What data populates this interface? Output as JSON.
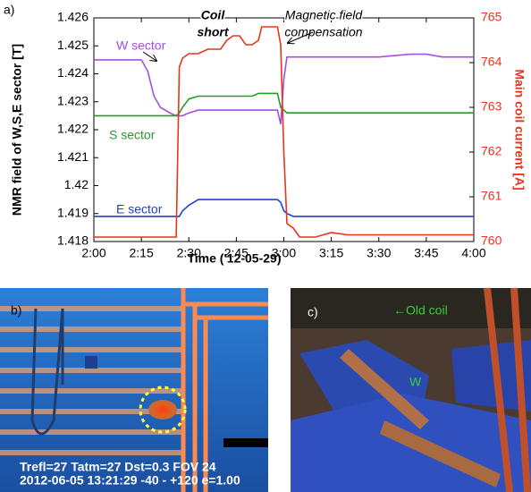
{
  "chart_data": {
    "type": "line",
    "panel_label": "a)",
    "xlabel": "Time ('12-05-29)",
    "ylabel": "NMR field of W,S,E sector [T]",
    "y2label": "Main coil current [A]",
    "x": [
      "2:00",
      "2:10",
      "2:15",
      "2:17",
      "2:19",
      "2:21",
      "2:24",
      "2:26",
      "2:27",
      "2:28",
      "2:30",
      "2:33",
      "2:36",
      "2:40",
      "2:42",
      "2:44",
      "2:46",
      "2:48",
      "2:50",
      "2:52",
      "2:53",
      "2:56",
      "2:58",
      "2:59",
      "3:00",
      "3:01",
      "3:03",
      "3:05",
      "3:10",
      "3:15",
      "3:20",
      "3:30",
      "3:40",
      "3:45",
      "3:50",
      "4:00"
    ],
    "xlim": [
      "2:00",
      "4:00"
    ],
    "xticks": [
      "2:00",
      "2:15",
      "2:30",
      "2:45",
      "3:00",
      "3:15",
      "3:30",
      "3:45",
      "4:00"
    ],
    "ylim": [
      1.418,
      1.426
    ],
    "yticks": [
      1.418,
      1.419,
      1.42,
      1.421,
      1.422,
      1.423,
      1.424,
      1.425,
      1.426
    ],
    "y2lim": [
      760,
      765
    ],
    "y2ticks": [
      760,
      761,
      762,
      763,
      764,
      765
    ],
    "y2color": "#e8341c",
    "grid": false,
    "series": [
      {
        "name": "W sector",
        "color": "#a64de0",
        "values": [
          1.4245,
          1.4245,
          1.4245,
          1.4241,
          1.4232,
          1.4228,
          1.4226,
          1.4225,
          1.4225,
          1.4225,
          1.4226,
          1.4227,
          1.4227,
          1.4227,
          1.4227,
          1.4227,
          1.4227,
          1.4227,
          1.4227,
          1.4227,
          1.4227,
          1.4227,
          1.4227,
          1.4222,
          1.4238,
          1.4246,
          1.4246,
          1.4246,
          1.4246,
          1.4246,
          1.4246,
          1.4246,
          1.4247,
          1.4247,
          1.4246,
          1.4246
        ]
      },
      {
        "name": "S sector",
        "color": "#2a9a2a",
        "values": [
          1.4225,
          1.4225,
          1.4225,
          1.4225,
          1.4225,
          1.4225,
          1.4225,
          1.4225,
          1.4226,
          1.4228,
          1.4231,
          1.4232,
          1.4232,
          1.4232,
          1.4232,
          1.4232,
          1.4232,
          1.4232,
          1.4232,
          1.4233,
          1.4233,
          1.4233,
          1.4233,
          1.4228,
          1.4227,
          1.4226,
          1.4226,
          1.4226,
          1.4226,
          1.4226,
          1.4226,
          1.4226,
          1.4226,
          1.4226,
          1.4226,
          1.4226
        ]
      },
      {
        "name": "E sector",
        "color": "#2040d0",
        "values": [
          1.4189,
          1.4189,
          1.4189,
          1.4189,
          1.4189,
          1.4189,
          1.4189,
          1.4189,
          1.4189,
          1.4191,
          1.4193,
          1.4195,
          1.4195,
          1.4195,
          1.4195,
          1.4195,
          1.4195,
          1.4195,
          1.4195,
          1.4195,
          1.4195,
          1.4195,
          1.4195,
          1.4194,
          1.4191,
          1.419,
          1.4189,
          1.4189,
          1.4189,
          1.4189,
          1.4189,
          1.4189,
          1.4189,
          1.4189,
          1.4189,
          1.4189
        ]
      },
      {
        "color": "#e8341c",
        "axis": "y2",
        "values": [
          760.1,
          760.1,
          760.1,
          760.1,
          760.1,
          760.1,
          760.1,
          760.1,
          763.9,
          764.1,
          764.2,
          764.2,
          764.3,
          764.3,
          764.5,
          764.6,
          764.6,
          764.4,
          764.4,
          764.5,
          764.8,
          764.8,
          764.8,
          764.4,
          762.0,
          760.4,
          760.3,
          760.1,
          760.1,
          760.2,
          760.15,
          760.15,
          760.15,
          760.15,
          760.15,
          760.15
        ]
      }
    ],
    "annotations": [
      {
        "text": [
          "Coil",
          "short"
        ]
      },
      {
        "text": [
          "Magnetic field",
          "compensation"
        ]
      }
    ]
  },
  "photos": [
    {
      "label": "b)",
      "texts": [
        "Trefl=27 Tatm=27 Dst=0.3 FOV 24",
        "2012-06-05 13:21:29  -40 - +120 e=1.00"
      ]
    },
    {
      "label": "c)",
      "texts": [
        "←Old coil",
        "W"
      ]
    }
  ]
}
